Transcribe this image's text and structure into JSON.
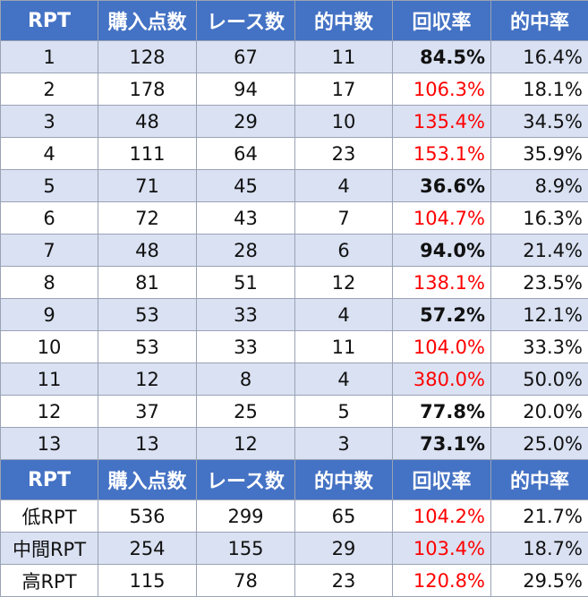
{
  "headers": [
    "RPT",
    "購入点数",
    "レース数",
    "的中数",
    "回収率",
    "的中率"
  ],
  "rows": [
    {
      "rpt": "1",
      "points": "128",
      "races": "67",
      "hits": "11",
      "recovery": "84.5%",
      "hit_rate": "16.4%",
      "recovery_color": "#111111"
    },
    {
      "rpt": "2",
      "points": "178",
      "races": "94",
      "hits": "17",
      "recovery": "106.3%",
      "hit_rate": "18.1%",
      "recovery_color": "#ff0000"
    },
    {
      "rpt": "3",
      "points": "48",
      "races": "29",
      "hits": "10",
      "recovery": "135.4%",
      "hit_rate": "34.5%",
      "recovery_color": "#ff0000"
    },
    {
      "rpt": "4",
      "points": "111",
      "races": "64",
      "hits": "23",
      "recovery": "153.1%",
      "hit_rate": "35.9%",
      "recovery_color": "#ff0000"
    },
    {
      "rpt": "5",
      "points": "71",
      "races": "45",
      "hits": "4",
      "recovery": "36.6%",
      "hit_rate": "8.9%",
      "recovery_color": "#111111"
    },
    {
      "rpt": "6",
      "points": "72",
      "races": "43",
      "hits": "7",
      "recovery": "104.7%",
      "hit_rate": "16.3%",
      "recovery_color": "#ff0000"
    },
    {
      "rpt": "7",
      "points": "48",
      "races": "28",
      "hits": "6",
      "recovery": "94.0%",
      "hit_rate": "21.4%",
      "recovery_color": "#111111"
    },
    {
      "rpt": "8",
      "points": "81",
      "races": "51",
      "hits": "12",
      "recovery": "138.1%",
      "hit_rate": "23.5%",
      "recovery_color": "#ff0000"
    },
    {
      "rpt": "9",
      "points": "53",
      "races": "33",
      "hits": "4",
      "recovery": "57.2%",
      "hit_rate": "12.1%",
      "recovery_color": "#111111"
    },
    {
      "rpt": "10",
      "points": "53",
      "races": "33",
      "hits": "11",
      "recovery": "104.0%",
      "hit_rate": "33.3%",
      "recovery_color": "#ff0000"
    },
    {
      "rpt": "11",
      "points": "12",
      "races": "8",
      "hits": "4",
      "recovery": "380.0%",
      "hit_rate": "50.0%",
      "recovery_color": "#ff0000"
    },
    {
      "rpt": "12",
      "points": "37",
      "races": "25",
      "hits": "5",
      "recovery": "77.8%",
      "hit_rate": "20.0%",
      "recovery_color": "#111111"
    },
    {
      "rpt": "13",
      "points": "13",
      "races": "12",
      "hits": "3",
      "recovery": "73.1%",
      "hit_rate": "25.0%",
      "recovery_color": "#111111"
    }
  ],
  "summary_headers": [
    "RPT",
    "購入点数",
    "レース数",
    "的中数",
    "回収率",
    "的中率"
  ],
  "summary_rows": [
    {
      "rpt": "低RPT",
      "points": "536",
      "races": "299",
      "hits": "65",
      "recovery": "104.2%",
      "hit_rate": "21.7%",
      "recovery_color": "#ff0000"
    },
    {
      "rpt": "中間RPT",
      "points": "254",
      "races": "155",
      "hits": "29",
      "recovery": "103.4%",
      "hit_rate": "18.7%",
      "recovery_color": "#ff0000"
    },
    {
      "rpt": "高RPT",
      "points": "115",
      "races": "78",
      "hits": "23",
      "recovery": "120.8%",
      "hit_rate": "29.5%",
      "recovery_color": "#ff0000"
    }
  ],
  "colors": {
    "header_bg": "#4472c4",
    "row_band": "#d9e1f2",
    "highlight": "#ff0000"
  }
}
